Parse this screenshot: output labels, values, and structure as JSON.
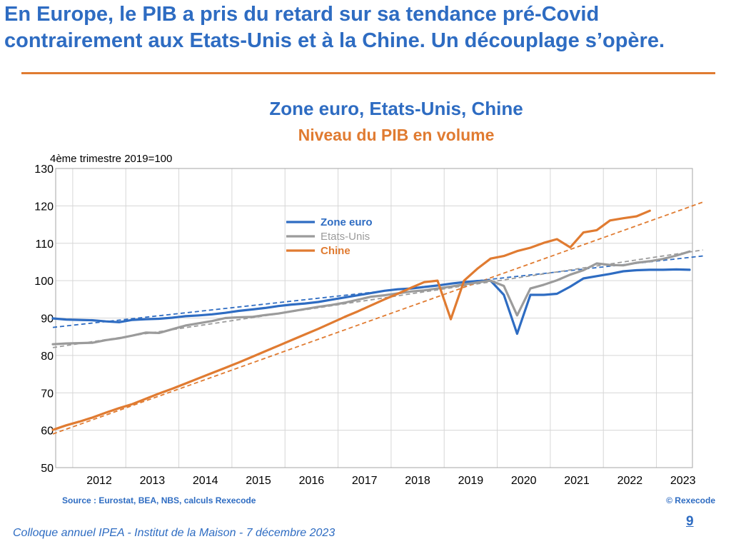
{
  "slide": {
    "title": "En Europe, le PIB a pris du retard sur sa tendance pré-Covid contrairement aux Etats-Unis et à la Chine. Un découplage s’opère.",
    "source": "Source : Eurostat, BEA, NBS, calculs Rexecode",
    "copyright": "© Rexecode",
    "page_number": "9",
    "footer": "Colloque annuel IPEA - Institut de la Maison - 7 décembre 2023"
  },
  "chart_data": {
    "type": "line",
    "title": "Zone euro, Etats-Unis, Chine",
    "subtitle": "Niveau du PIB en volume",
    "ylabel": "4ème trimestre 2019=100",
    "ylim": [
      50,
      130
    ],
    "yticks": [
      "50",
      "60",
      "70",
      "80",
      "90",
      "100",
      "110",
      "120",
      "130"
    ],
    "x_tick_labels": [
      "2012",
      "2013",
      "2014",
      "2015",
      "2016",
      "2017",
      "2018",
      "2019",
      "2020",
      "2021",
      "2022",
      "2023"
    ],
    "xlim": [
      "2011-T3",
      "2023-T3"
    ],
    "grid": true,
    "legend_position": "top-center",
    "series": [
      {
        "name": "Zone euro",
        "color": "#2E6CC2",
        "start": "2011-T3",
        "values": [
          89.9,
          89.6,
          89.5,
          89.4,
          89.1,
          88.9,
          89.5,
          89.7,
          89.8,
          90.1,
          90.5,
          90.7,
          91.0,
          91.4,
          91.9,
          92.3,
          92.7,
          93.2,
          93.6,
          93.9,
          94.3,
          94.9,
          95.5,
          96.1,
          96.7,
          97.3,
          97.7,
          97.9,
          98.3,
          98.7,
          99.2,
          99.6,
          99.9,
          100.0,
          96.2,
          85.8,
          96.2,
          96.2,
          96.5,
          98.4,
          100.6,
          101.2,
          101.8,
          102.5,
          102.8,
          102.9,
          102.9,
          103.0,
          102.9
        ]
      },
      {
        "name": "Etats-Unis",
        "color": "#9B9B9B",
        "start": "2011-T3",
        "values": [
          83.0,
          83.2,
          83.3,
          83.4,
          84.1,
          84.6,
          85.3,
          86.1,
          86.0,
          87.0,
          88.0,
          88.6,
          89.2,
          90.0,
          90.2,
          90.3,
          90.8,
          91.2,
          91.8,
          92.4,
          93.0,
          93.5,
          94.1,
          94.9,
          95.7,
          96.1,
          96.6,
          97.1,
          97.4,
          97.9,
          98.4,
          99.0,
          99.5,
          100.0,
          98.6,
          90.7,
          97.9,
          98.9,
          100.1,
          101.6,
          102.8,
          104.6,
          104.2,
          104.1,
          104.8,
          105.2,
          105.8,
          106.7,
          107.8
        ]
      },
      {
        "name": "Chine",
        "color": "#E07B31",
        "start": "2011-T3",
        "values": [
          60.1,
          61.3,
          62.3,
          63.4,
          64.7,
          65.9,
          67.0,
          68.4,
          69.8,
          71.1,
          72.5,
          73.9,
          75.3,
          76.7,
          78.1,
          79.6,
          81.1,
          82.6,
          84.1,
          85.6,
          87.1,
          88.7,
          90.3,
          91.8,
          93.4,
          95.0,
          96.5,
          98.1,
          99.6,
          100.0,
          89.7,
          100.0,
          103.2,
          105.9,
          106.6,
          107.9,
          108.8,
          110.1,
          111.1,
          108.9,
          112.9,
          113.5,
          116.1,
          116.7,
          117.2,
          118.7
        ]
      }
    ],
    "trends": [
      {
        "of": "Zone euro",
        "color": "#2E6CC2",
        "from": [
          "2011-T3",
          87.5
        ],
        "to": [
          "2023-T4",
          106.6
        ]
      },
      {
        "of": "Etats-Unis",
        "color": "#9B9B9B",
        "from": [
          "2011-T3",
          82.1
        ],
        "to": [
          "2023-T4",
          108.2
        ]
      },
      {
        "of": "Chine",
        "color": "#E07B31",
        "from": [
          "2011-T3",
          59.0
        ],
        "to": [
          "2023-T4",
          121.0
        ]
      }
    ]
  }
}
